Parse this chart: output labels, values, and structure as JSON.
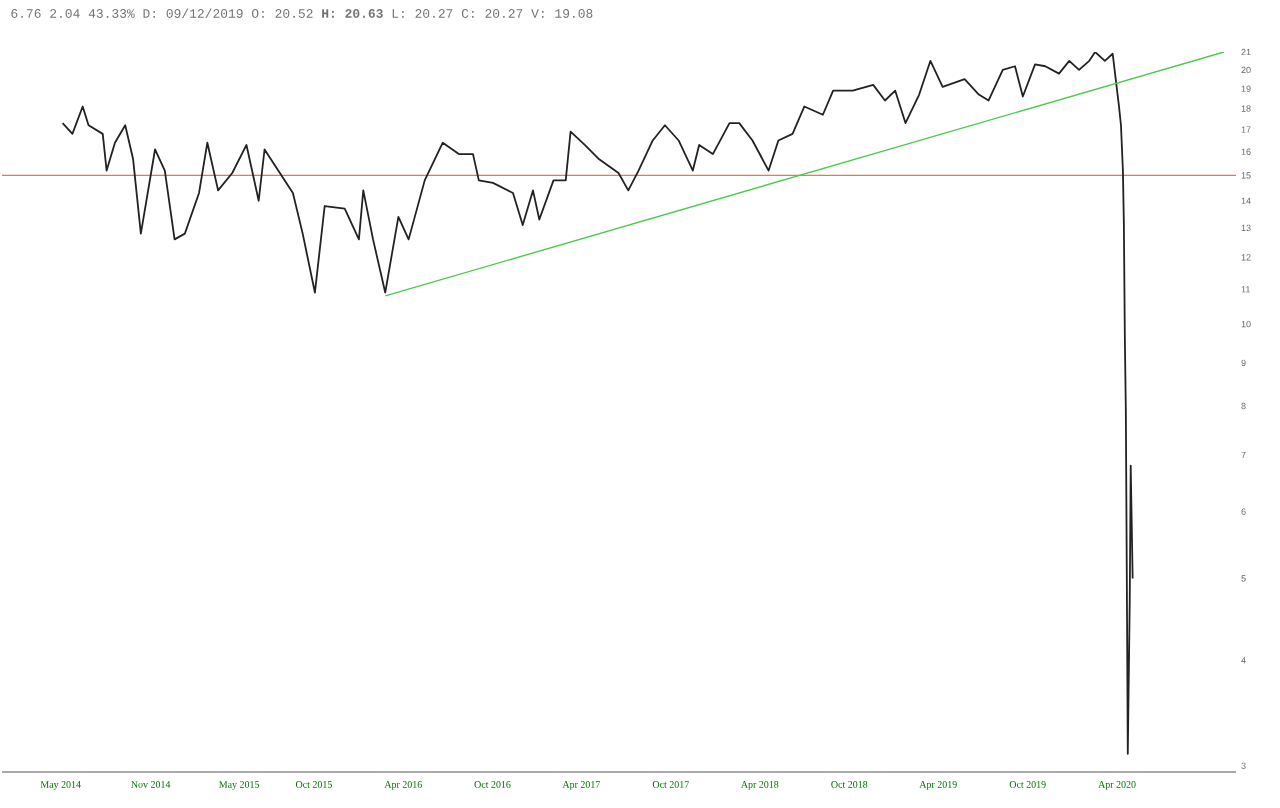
{
  "chart_data": {
    "type": "line",
    "title": "6.76 2.04 43.33% D: 09/12/2019 O: 20.52 **H: 20.63** L: 20.27 C: 20.27 V: 19.08",
    "log": "y",
    "xlim": [
      "2014-01-01",
      "2020-12-01"
    ],
    "ylim": [
      2.95,
      21
    ],
    "xticks": [
      {
        "value": "2014-05-01",
        "label": "May 2014"
      },
      {
        "value": "2014-11-01",
        "label": "Nov 2014"
      },
      {
        "value": "2015-05-01",
        "label": "May 2015"
      },
      {
        "value": "2015-10-01",
        "label": "Oct 2015"
      },
      {
        "value": "2016-04-01",
        "label": "Apr 2016"
      },
      {
        "value": "2016-10-01",
        "label": "Oct 2016"
      },
      {
        "value": "2017-04-01",
        "label": "Apr 2017"
      },
      {
        "value": "2017-10-01",
        "label": "Oct 2017"
      },
      {
        "value": "2018-04-01",
        "label": "Apr 2018"
      },
      {
        "value": "2018-10-01",
        "label": "Oct 2018"
      },
      {
        "value": "2019-04-01",
        "label": "Apr 2019"
      },
      {
        "value": "2019-10-01",
        "label": "Oct 2019"
      },
      {
        "value": "2020-04-01",
        "label": "Apr 2020"
      }
    ],
    "yticks": [
      3,
      4,
      5,
      6,
      7,
      8,
      9,
      10,
      11,
      12,
      13,
      14,
      15,
      16,
      17,
      18,
      19,
      20,
      21
    ],
    "ref_lines": [
      {
        "axis": "y",
        "value": 15,
        "color": "#e8784e"
      }
    ],
    "series": [
      {
        "color": "#222222",
        "x": [
          "2014-05-05",
          "2014-05-25",
          "2014-06-15",
          "2014-06-27",
          "2014-07-26",
          "2014-08-03",
          "2014-08-20",
          "2014-09-10",
          "2014-09-26",
          "2014-10-12",
          "2014-11-10",
          "2014-11-30",
          "2014-12-20",
          "2015-01-10",
          "2015-02-08",
          "2015-02-25",
          "2015-03-19",
          "2015-04-17",
          "2015-05-16",
          "2015-06-10",
          "2015-06-22",
          "2015-07-20",
          "2015-08-19",
          "2015-09-08",
          "2015-10-03",
          "2015-10-23",
          "2015-12-03",
          "2016-01-01",
          "2016-01-10",
          "2016-01-30",
          "2016-02-24",
          "2016-03-22",
          "2016-04-12",
          "2016-05-15",
          "2016-06-21",
          "2016-07-24",
          "2016-08-22",
          "2016-09-03",
          "2016-10-02",
          "2016-11-12",
          "2016-12-02",
          "2016-12-23",
          "2017-01-05",
          "2017-02-03",
          "2017-02-28",
          "2017-03-10",
          "2017-04-08",
          "2017-05-06",
          "2017-06-16",
          "2017-07-06",
          "2017-07-27",
          "2017-08-25",
          "2017-09-19",
          "2017-10-17",
          "2017-11-15",
          "2017-11-28",
          "2017-12-26",
          "2018-01-29",
          "2018-02-18",
          "2018-03-17",
          "2018-04-19",
          "2018-05-09",
          "2018-06-07",
          "2018-07-01",
          "2018-08-08",
          "2018-08-29",
          "2018-10-08",
          "2018-11-19",
          "2018-12-13",
          "2019-01-03",
          "2019-01-24",
          "2019-02-21",
          "2019-03-16",
          "2019-04-10",
          "2019-05-25",
          "2019-06-23",
          "2019-07-13",
          "2019-08-11",
          "2019-09-05",
          "2019-09-21",
          "2019-10-16",
          "2019-11-06",
          "2019-12-04",
          "2019-12-25",
          "2020-01-14",
          "2020-02-04",
          "2020-02-16",
          "2020-03-07",
          "2020-03-23",
          "2020-03-27",
          "2020-04-05",
          "2020-04-09",
          "2020-04-13",
          "2020-04-15",
          "2020-04-17",
          "2020-04-19",
          "2020-04-21",
          "2020-04-23",
          "2020-04-27",
          "2020-04-29",
          "2020-05-03"
        ],
        "values": [
          17.3,
          16.8,
          18.1,
          17.2,
          16.8,
          15.2,
          16.4,
          17.2,
          15.7,
          12.8,
          16.1,
          15.2,
          12.6,
          12.8,
          14.3,
          16.4,
          14.4,
          15.1,
          16.3,
          14.0,
          16.1,
          15.2,
          14.3,
          12.8,
          10.9,
          13.8,
          13.7,
          12.6,
          14.4,
          12.6,
          10.9,
          13.4,
          12.6,
          14.8,
          16.4,
          15.9,
          15.9,
          14.8,
          14.7,
          14.3,
          13.1,
          14.4,
          13.3,
          14.8,
          14.8,
          16.9,
          16.3,
          15.7,
          15.1,
          14.4,
          15.2,
          16.5,
          17.2,
          16.5,
          15.2,
          16.3,
          15.9,
          17.3,
          17.3,
          16.5,
          15.2,
          16.5,
          16.8,
          18.1,
          17.7,
          18.9,
          18.9,
          19.2,
          18.4,
          18.9,
          17.3,
          18.7,
          20.5,
          19.1,
          19.5,
          18.7,
          18.4,
          20.0,
          20.2,
          18.6,
          20.3,
          20.2,
          19.8,
          20.5,
          20.0,
          20.5,
          21.0,
          20.5,
          20.9,
          20.0,
          18.1,
          17.2,
          15.2,
          13.1,
          9.6,
          7.9,
          5.0,
          3.1,
          4.7,
          6.8,
          5.0
        ]
      },
      {
        "color": "#4cc94c",
        "x": [
          "2016-02-24",
          "2020-11-06"
        ],
        "values": [
          10.8,
          21
        ]
      }
    ]
  }
}
